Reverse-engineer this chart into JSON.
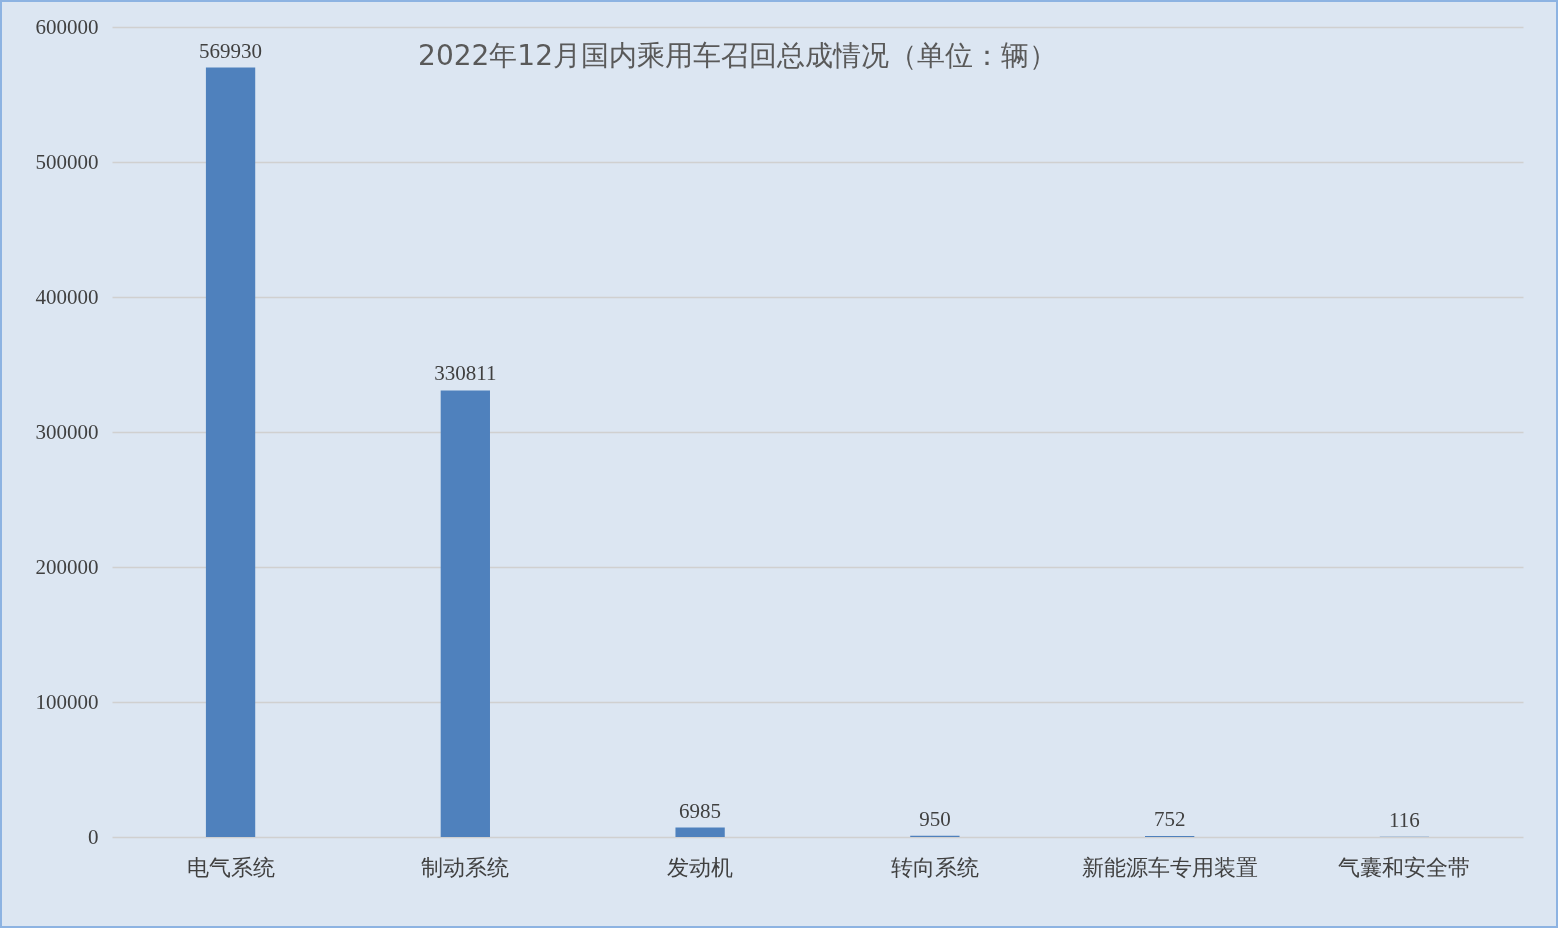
{
  "chart_data": {
    "type": "bar",
    "title": "2022年12月国内乘用车召回总成情况（单位：辆）",
    "categories": [
      "电气系统",
      "制动系统",
      "发动机",
      "转向系统",
      "新能源车专用装置",
      "气囊和安全带"
    ],
    "values": [
      569930,
      330811,
      6985,
      950,
      752,
      116
    ],
    "color": "#4f81bd",
    "ylim": [
      0,
      600000
    ],
    "yticks": [
      0,
      100000,
      200000,
      300000,
      400000,
      500000,
      600000
    ],
    "grid": "y",
    "data_labels": true
  }
}
